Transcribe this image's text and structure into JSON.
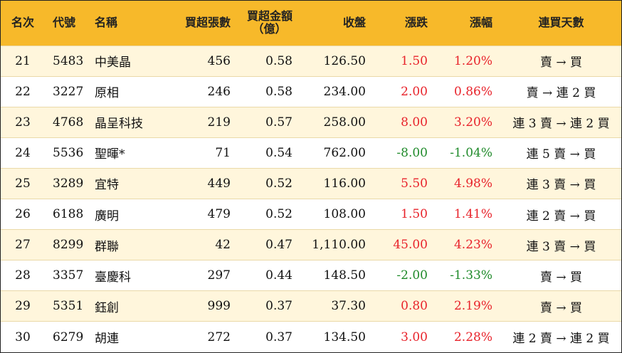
{
  "colors": {
    "header_bg": "#f7b92a",
    "row_alt_bg": "#fff6dc",
    "up": "#e8232b",
    "down": "#1f8a2a"
  },
  "headers": {
    "rank": "名次",
    "code": "代號",
    "name": "名稱",
    "net_buy_lots": "買超張數",
    "net_buy_amount_line1": "買超金額",
    "net_buy_amount_line2": "（億）",
    "close": "收盤",
    "change": "漲跌",
    "change_pct": "漲幅",
    "consecutive_days": "連買天數"
  },
  "rows": [
    {
      "rank": "21",
      "code": "5483",
      "name": "中美晶",
      "lots": "456",
      "amount": "0.58",
      "close": "126.50",
      "change": "1.50",
      "pct": "1.20%",
      "dir": "up",
      "days": "賣 → 買"
    },
    {
      "rank": "22",
      "code": "3227",
      "name": "原相",
      "lots": "246",
      "amount": "0.58",
      "close": "234.00",
      "change": "2.00",
      "pct": "0.86%",
      "dir": "up",
      "days": "賣 → 連 2 買"
    },
    {
      "rank": "23",
      "code": "4768",
      "name": "晶呈科技",
      "lots": "219",
      "amount": "0.57",
      "close": "258.00",
      "change": "8.00",
      "pct": "3.20%",
      "dir": "up",
      "days": "連 3 賣 → 連 2 買"
    },
    {
      "rank": "24",
      "code": "5536",
      "name": "聖暉*",
      "lots": "71",
      "amount": "0.54",
      "close": "762.00",
      "change": "-8.00",
      "pct": "-1.04%",
      "dir": "down",
      "days": "連 5 賣 → 買"
    },
    {
      "rank": "25",
      "code": "3289",
      "name": "宜特",
      "lots": "449",
      "amount": "0.52",
      "close": "116.00",
      "change": "5.50",
      "pct": "4.98%",
      "dir": "up",
      "days": "連 3 賣 → 買"
    },
    {
      "rank": "26",
      "code": "6188",
      "name": "廣明",
      "lots": "479",
      "amount": "0.52",
      "close": "108.00",
      "change": "1.50",
      "pct": "1.41%",
      "dir": "up",
      "days": "連 2 賣 → 買"
    },
    {
      "rank": "27",
      "code": "8299",
      "name": "群聯",
      "lots": "42",
      "amount": "0.47",
      "close": "1,110.00",
      "change": "45.00",
      "pct": "4.23%",
      "dir": "up",
      "days": "連 3 賣 → 買"
    },
    {
      "rank": "28",
      "code": "3357",
      "name": "臺慶科",
      "lots": "297",
      "amount": "0.44",
      "close": "148.50",
      "change": "-2.00",
      "pct": "-1.33%",
      "dir": "down",
      "days": "賣 → 買"
    },
    {
      "rank": "29",
      "code": "5351",
      "name": "鈺創",
      "lots": "999",
      "amount": "0.37",
      "close": "37.30",
      "change": "0.80",
      "pct": "2.19%",
      "dir": "up",
      "days": "賣 → 買"
    },
    {
      "rank": "30",
      "code": "6279",
      "name": "胡連",
      "lots": "272",
      "amount": "0.37",
      "close": "134.50",
      "change": "3.00",
      "pct": "2.28%",
      "dir": "up",
      "days": "連 2 賣 → 連 2 買"
    }
  ]
}
